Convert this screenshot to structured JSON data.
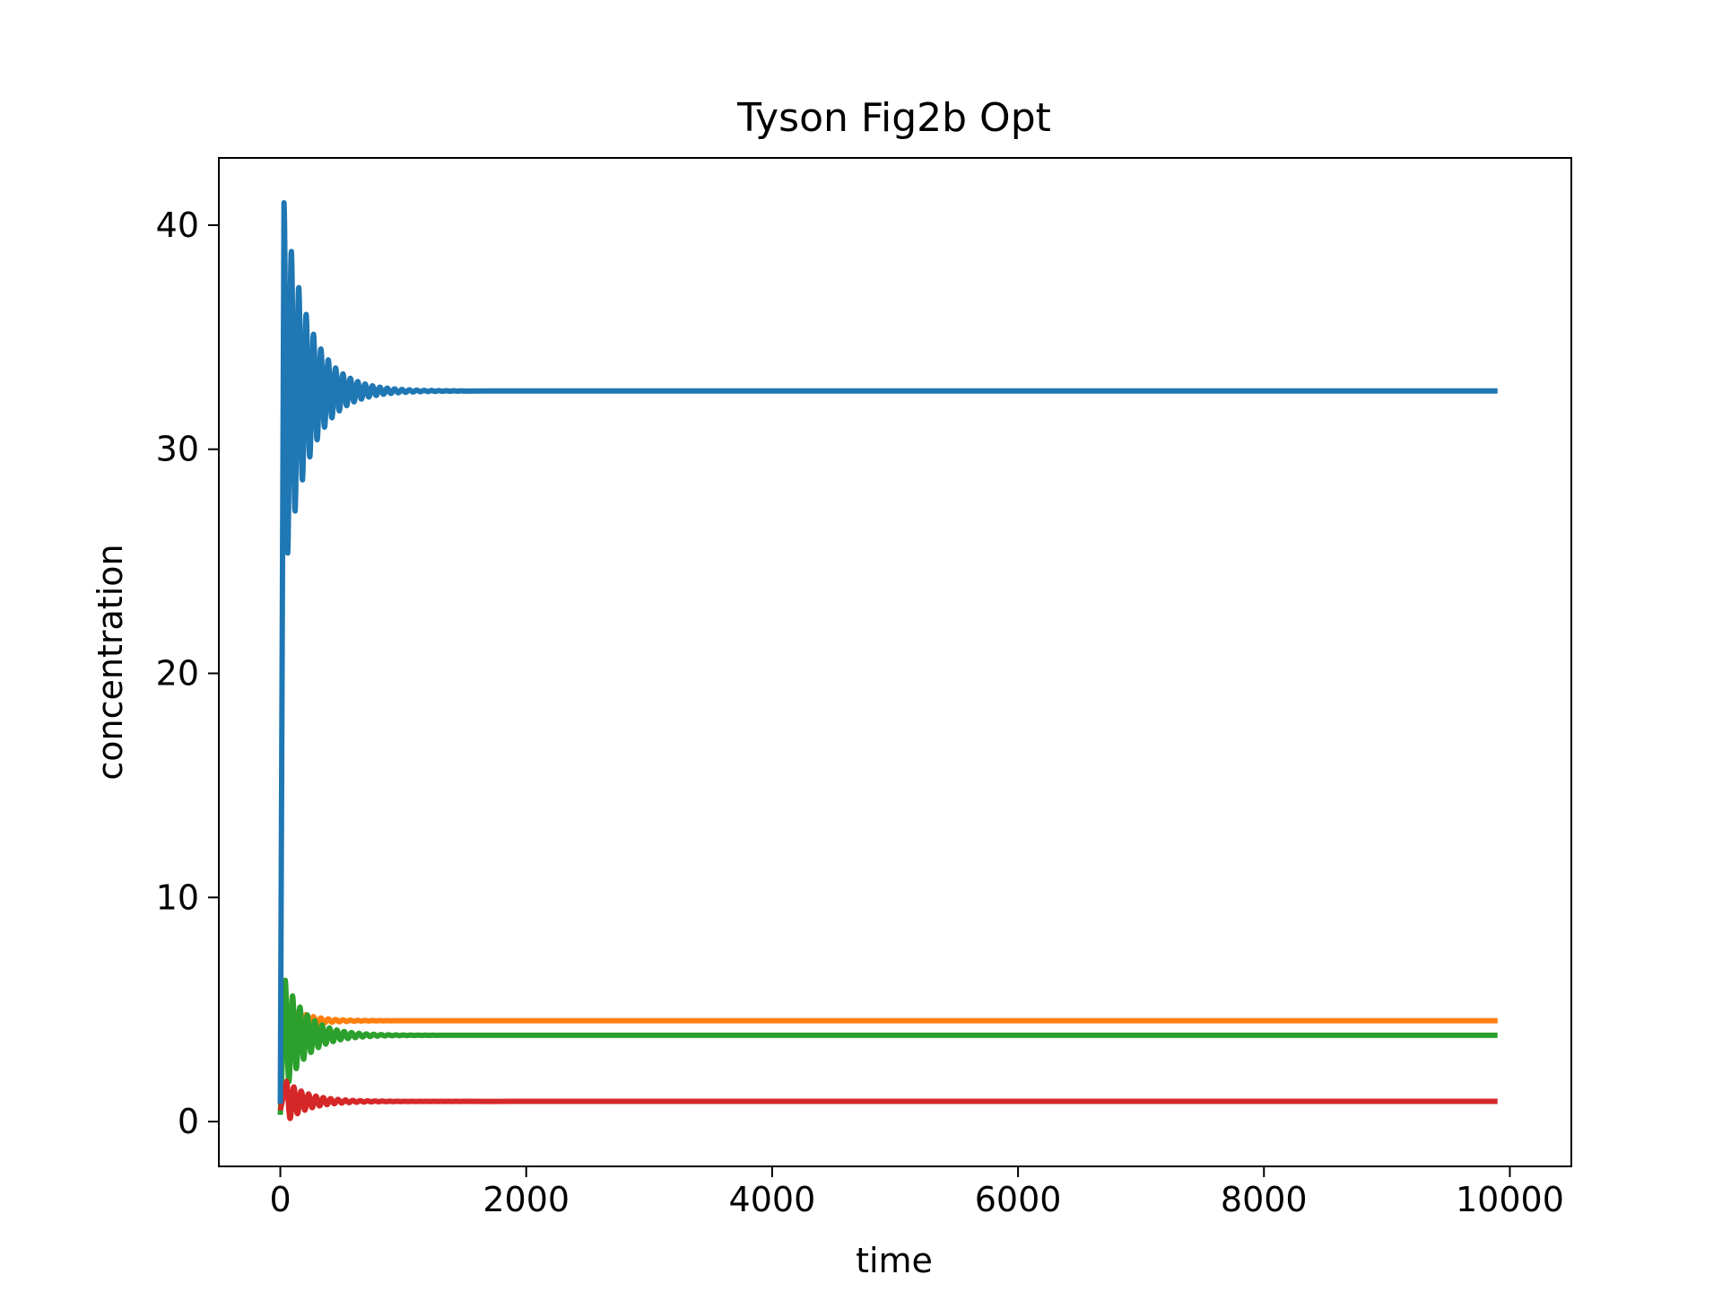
{
  "chart_data": {
    "type": "line",
    "title": "Tyson Fig2b Opt",
    "xlabel": "time",
    "ylabel": "concentration",
    "xlim": [
      -500,
      10500
    ],
    "ylim": [
      -2,
      43
    ],
    "x_ticks": [
      0,
      2000,
      4000,
      6000,
      8000,
      10000
    ],
    "y_ticks": [
      0,
      10,
      20,
      30,
      40
    ],
    "grid": false,
    "legend": "none",
    "series": [
      {
        "color": "#1f77b4",
        "start": 0.8,
        "steady": 32.6,
        "first_peak": 41.0,
        "first_peak_time": 30,
        "period": 60,
        "decay_time": 200,
        "t_end": 10000
      },
      {
        "color": "#ff7f0e",
        "start": 5.2,
        "steady": 4.5,
        "first_peak": 5.4,
        "first_peak_time": 30,
        "period": 60,
        "decay_time": 150,
        "t_end": 10000
      },
      {
        "color": "#2ca02c",
        "start": 0.3,
        "steady": 3.85,
        "first_peak": 6.3,
        "first_peak_time": 40,
        "period": 60,
        "decay_time": 180,
        "t_end": 10000
      },
      {
        "color": "#d62728",
        "start": 0.5,
        "steady": 0.9,
        "first_peak": 1.8,
        "first_peak_time": 50,
        "period": 60,
        "decay_time": 180,
        "t_end": 10000
      }
    ]
  }
}
